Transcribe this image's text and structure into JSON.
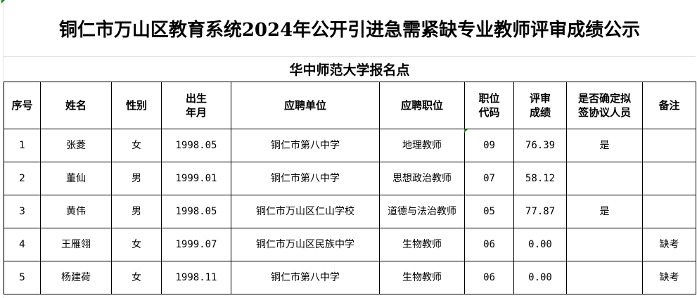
{
  "title": "铜仁市万山区教育系统2024年公开引进急需紧缺专业教师评审成绩公示",
  "subtitle": "华中师范大学报名点",
  "columns": [
    "序号",
    "姓名",
    "性别",
    "出生\n年月",
    "应聘单位",
    "应聘职位",
    "职位\n代码",
    "评审\n成绩",
    "是否确定拟\n签协议人员",
    "备注"
  ],
  "rows": [
    [
      "1",
      "张菱",
      "女",
      "1998.05",
      "铜仁市第八中学",
      "地理教师",
      "09",
      "76.39",
      "是",
      ""
    ],
    [
      "2",
      "董仙",
      "男",
      "1999.01",
      "铜仁市第八中学",
      "思想政治教师",
      "07",
      "58.12",
      "",
      ""
    ],
    [
      "3",
      "黄伟",
      "男",
      "1998.05",
      "铜仁市万山区仁山学校",
      "道德与法治教师",
      "05",
      "77.87",
      "是",
      ""
    ],
    [
      "4",
      "王雁翎",
      "女",
      "1999.07",
      "铜仁市万山区民族中学",
      "生物教师",
      "06",
      "0.00",
      "",
      "缺考"
    ],
    [
      "5",
      "杨建荷",
      "女",
      "1998.11",
      "铜仁市第八中学",
      "生物教师",
      "06",
      "0.00",
      "",
      "缺考"
    ]
  ],
  "colors": {
    "cell_marker": "#1a8a1a",
    "gridline": "#e2e2e2"
  }
}
